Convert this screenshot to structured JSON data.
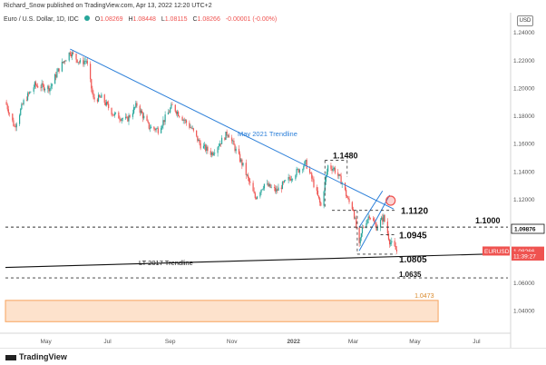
{
  "header": {
    "published": "Richard_Snow published on TradingView.com, Apr 13, 2022 12:20 UTC+2",
    "symbol_line": "Euro / U.S. Dollar, 1D, IDC",
    "ohlc": {
      "o_label": "O",
      "o_value": "1.08269",
      "h_label": "H",
      "h_value": "1.08448",
      "l_label": "L",
      "l_value": "1.08115",
      "c_label": "C",
      "c_value": "1.08266",
      "change": "-0.00001 (-0.00%)"
    }
  },
  "currency_button": "USD",
  "footer": {
    "brand": "TradingView"
  },
  "colors": {
    "up": "#26a69a",
    "down": "#ef5350",
    "trendline_blue": "#2b7fd9",
    "long_trendline": "#111111",
    "zone_fill": "#fde2cc",
    "zone_stroke": "#f7a35c",
    "price_tag": "#ef5350",
    "level_tag": "#111111"
  },
  "chart_data": {
    "type": "candlestick",
    "ylim": [
      1.025,
      1.245
    ],
    "y_ticks": [
      1.04,
      1.06,
      1.08,
      1.1,
      1.12,
      1.14,
      1.16,
      1.18,
      1.2,
      1.22,
      1.24
    ],
    "x_ticks": [
      "May",
      "Jul",
      "Sep",
      "Nov",
      "2022",
      "Mar",
      "May",
      "Jul"
    ],
    "x_tick_dates": [
      "2021-05-01",
      "2021-07-01",
      "2021-09-01",
      "2021-11-01",
      "2022-01-01",
      "2022-03-01",
      "2022-05-01",
      "2022-07-01"
    ],
    "x_range": [
      "2021-03-22",
      "2022-08-01"
    ],
    "close_path": [
      [
        "2021-03-22",
        1.19
      ],
      [
        "2021-03-31",
        1.172
      ],
      [
        "2021-04-09",
        1.19
      ],
      [
        "2021-04-20",
        1.202
      ],
      [
        "2021-05-05",
        1.2
      ],
      [
        "2021-05-14",
        1.214
      ],
      [
        "2021-05-25",
        1.226
      ],
      [
        "2021-06-04",
        1.218
      ],
      [
        "2021-06-10",
        1.22
      ],
      [
        "2021-06-17",
        1.192
      ],
      [
        "2021-06-25",
        1.193
      ],
      [
        "2021-07-07",
        1.181
      ],
      [
        "2021-07-20",
        1.177
      ],
      [
        "2021-07-30",
        1.188
      ],
      [
        "2021-08-11",
        1.172
      ],
      [
        "2021-08-20",
        1.17
      ],
      [
        "2021-09-03",
        1.187
      ],
      [
        "2021-09-10",
        1.181
      ],
      [
        "2021-09-22",
        1.171
      ],
      [
        "2021-10-01",
        1.159
      ],
      [
        "2021-10-12",
        1.153
      ],
      [
        "2021-10-28",
        1.168
      ],
      [
        "2021-11-05",
        1.155
      ],
      [
        "2021-11-12",
        1.144
      ],
      [
        "2021-11-24",
        1.121
      ],
      [
        "2021-12-03",
        1.131
      ],
      [
        "2021-12-15",
        1.126
      ],
      [
        "2021-12-31",
        1.137
      ],
      [
        "2022-01-13",
        1.146
      ],
      [
        "2022-01-20",
        1.133
      ],
      [
        "2022-01-28",
        1.115
      ],
      [
        "2022-02-04",
        1.144
      ],
      [
        "2022-02-10",
        1.142
      ],
      [
        "2022-02-18",
        1.132
      ],
      [
        "2022-02-24",
        1.119
      ],
      [
        "2022-03-01",
        1.113
      ],
      [
        "2022-03-07",
        1.086
      ],
      [
        "2022-03-10",
        1.099
      ],
      [
        "2022-03-17",
        1.109
      ],
      [
        "2022-03-24",
        1.1
      ],
      [
        "2022-03-31",
        1.107
      ],
      [
        "2022-04-06",
        1.09
      ],
      [
        "2022-04-13",
        1.0827
      ]
    ],
    "trendlines": [
      {
        "label": "May 2021 Trendline",
        "from": [
          "2021-05-25",
          1.228
        ],
        "to": [
          "2022-04-10",
          1.113
        ],
        "color": "#2b7fd9"
      },
      {
        "label": "LT 2017 Trendline",
        "from": [
          "2021-03-22",
          1.071
        ],
        "to": [
          "2022-08-01",
          1.081
        ],
        "color": "#111111"
      },
      {
        "label": "",
        "from": [
          "2022-03-07",
          1.083
        ],
        "to": [
          "2022-04-06",
          1.123
        ],
        "color": "#2b7fd9"
      },
      {
        "label": "",
        "from": [
          "2022-03-07",
          1.1
        ],
        "to": [
          "2022-03-30",
          1.126
        ],
        "color": "#2b7fd9"
      }
    ],
    "levels": [
      {
        "label": "1.1480",
        "value": 1.148,
        "from": "2022-02-01",
        "to": "2022-02-23"
      },
      {
        "label": "1.1120",
        "value": 1.112,
        "from": "2022-02-08",
        "to": "2022-04-12"
      },
      {
        "label": "1.1000",
        "value": 1.1,
        "from": "2021-03-22",
        "to": "2022-08-01"
      },
      {
        "label": "1.0945",
        "value": 1.0945,
        "from": "2022-03-28",
        "to": "2022-04-12"
      },
      {
        "label": "1.0805",
        "value": 1.0805,
        "from": "2022-03-05",
        "to": "2022-04-12"
      },
      {
        "label": "1.0635",
        "value": 1.0635,
        "from": "2021-03-22",
        "to": "2022-08-01"
      }
    ],
    "zone": {
      "label": "1.0473",
      "y_top": 1.0473,
      "y_bottom": 1.032,
      "from": "2021-03-22",
      "to": "2022-05-24"
    },
    "price_tags": [
      {
        "label": "1.09876",
        "value": 1.09876,
        "style": "outline"
      },
      {
        "label": "EURUSD",
        "value": 1.0828,
        "style": "red"
      },
      {
        "label": "1.08266",
        "value": 1.0827,
        "style": "red"
      },
      {
        "label": "11:39:27",
        "value": 1.0792,
        "style": "red"
      }
    ],
    "marker": {
      "date": "2022-04-07",
      "value": 1.119
    }
  }
}
